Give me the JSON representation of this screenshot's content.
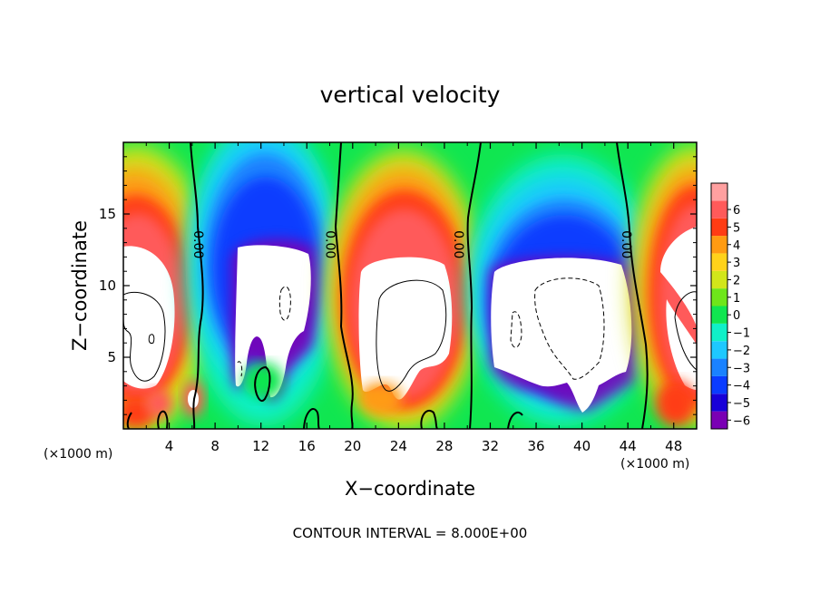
{
  "chart_data": {
    "type": "heatmap",
    "title": "vertical velocity",
    "xlabel": "X−coordinate",
    "ylabel": "Z−coordinate",
    "x_units_label": "(×1000 m)",
    "x_units_label_right": "(×1000 m)",
    "xlim": [
      0,
      50
    ],
    "ylim": [
      0,
      20
    ],
    "x_ticks": [
      4,
      8,
      12,
      16,
      20,
      24,
      28,
      32,
      36,
      40,
      44,
      48
    ],
    "y_ticks": [
      5,
      10,
      15
    ],
    "footer": "CONTOUR INTERVAL = 8.000E+00",
    "contour_labels": [
      "0.00",
      "0.00",
      "0.00",
      "0.00"
    ],
    "zero_contour_x": [
      6,
      18,
      30,
      44
    ],
    "colorbar": {
      "levels": [
        -6,
        -5,
        -4,
        -3,
        -2,
        -1,
        0,
        1,
        2,
        3,
        4,
        5,
        6
      ],
      "labels": [
        "6",
        "5",
        "4",
        "3",
        "2",
        "1",
        "0",
        "−1",
        "−2",
        "−3",
        "−4",
        "−5",
        "−6"
      ],
      "colors": [
        "#7a00b4",
        "#1800d8",
        "#0a3cff",
        "#1a82ff",
        "#1ec8ff",
        "#10f0c8",
        "#10e650",
        "#6ee61a",
        "#d2e61a",
        "#ffd21a",
        "#ff9b12",
        "#ff3c14",
        "#ff5a5a",
        "#ffa0a0"
      ],
      "white_color": "#ffffff"
    },
    "cells": [
      {
        "x": [
          0,
          5
        ],
        "z": [
          2,
          13
        ],
        "value": "updraft"
      },
      {
        "x": [
          9,
          16
        ],
        "z": [
          3,
          13
        ],
        "value": "downdraft"
      },
      {
        "x": [
          20,
          28
        ],
        "z": [
          2,
          12
        ],
        "value": "updraft"
      },
      {
        "x": [
          32,
          43
        ],
        "z": [
          1,
          12
        ],
        "value": "downdraft"
      },
      {
        "x": [
          45,
          50
        ],
        "z": [
          3,
          13
        ],
        "value": "updraft"
      }
    ]
  }
}
